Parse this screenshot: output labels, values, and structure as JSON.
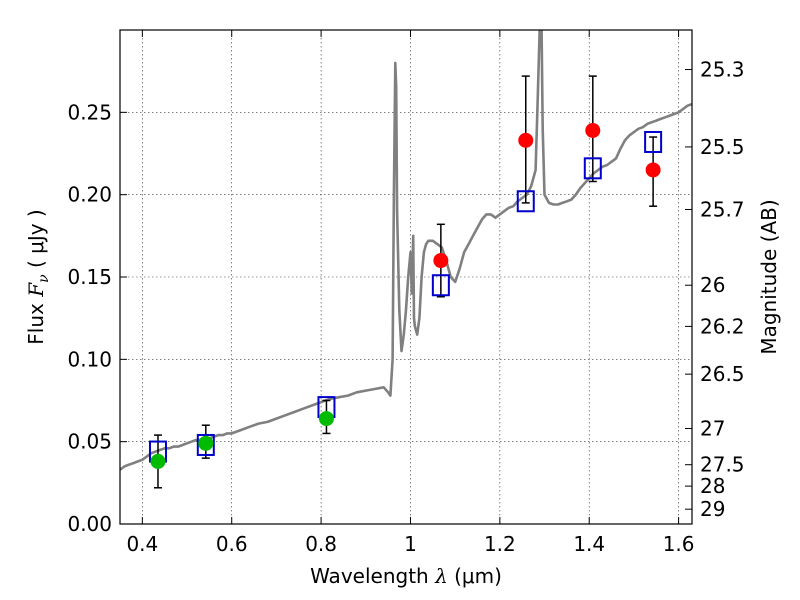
{
  "chart_data": {
    "type": "scatter",
    "xlabel_text": "Wavelength",
    "xlabel_symbol": "λ",
    "xlabel_unit": "(μm)",
    "ylabel_text": "Flux",
    "ylabel_symbol": "F",
    "ylabel_symbol_sub": "ν",
    "ylabel_unit": "( μJy )",
    "y2label": "Magnitude (AB)",
    "xlim": [
      0.35,
      1.63
    ],
    "ylim": [
      0.0,
      0.3
    ],
    "grid": true,
    "x_ticks": [
      0.4,
      0.6,
      0.8,
      1.0,
      1.2,
      1.4,
      1.6
    ],
    "x_tick_labels": [
      "0.4",
      "0.6",
      "0.8",
      "1",
      "1.2",
      "1.4",
      "1.6"
    ],
    "y_ticks": [
      0.0,
      0.05,
      0.1,
      0.15,
      0.2,
      0.25
    ],
    "y_tick_labels": [
      "0.00",
      "0.05",
      "0.10",
      "0.15",
      "0.20",
      "0.25"
    ],
    "y2_ticks": [
      {
        "label": "25.3",
        "flux": 0.276
      },
      {
        "label": "25.5",
        "flux": 0.229
      },
      {
        "label": "25.7",
        "flux": 0.191
      },
      {
        "label": "26",
        "flux": 0.145
      },
      {
        "label": "26.2",
        "flux": 0.12
      },
      {
        "label": "26.5",
        "flux": 0.091
      },
      {
        "label": "27",
        "flux": 0.058
      },
      {
        "label": "27.5",
        "flux": 0.036
      },
      {
        "label": "28",
        "flux": 0.023
      },
      {
        "label": "29",
        "flux": 0.009
      }
    ],
    "colors": {
      "model": "#808080",
      "green": "#00bb00",
      "red": "#ff0000",
      "square": "#0000cc",
      "errorbar": "#000000"
    },
    "model_spectrum": [
      [
        0.35,
        0.033
      ],
      [
        0.36,
        0.035
      ],
      [
        0.37,
        0.036
      ],
      [
        0.38,
        0.037
      ],
      [
        0.39,
        0.038
      ],
      [
        0.4,
        0.039
      ],
      [
        0.41,
        0.041
      ],
      [
        0.42,
        0.043
      ],
      [
        0.43,
        0.044
      ],
      [
        0.44,
        0.045
      ],
      [
        0.45,
        0.046
      ],
      [
        0.46,
        0.046
      ],
      [
        0.47,
        0.047
      ],
      [
        0.48,
        0.047
      ],
      [
        0.49,
        0.048
      ],
      [
        0.5,
        0.049
      ],
      [
        0.51,
        0.05
      ],
      [
        0.52,
        0.051
      ],
      [
        0.53,
        0.051
      ],
      [
        0.54,
        0.052
      ],
      [
        0.55,
        0.052
      ],
      [
        0.56,
        0.053
      ],
      [
        0.57,
        0.054
      ],
      [
        0.58,
        0.054
      ],
      [
        0.59,
        0.055
      ],
      [
        0.6,
        0.055
      ],
      [
        0.62,
        0.057
      ],
      [
        0.64,
        0.059
      ],
      [
        0.66,
        0.061
      ],
      [
        0.68,
        0.062
      ],
      [
        0.7,
        0.064
      ],
      [
        0.72,
        0.066
      ],
      [
        0.74,
        0.068
      ],
      [
        0.76,
        0.07
      ],
      [
        0.78,
        0.072
      ],
      [
        0.8,
        0.074
      ],
      [
        0.82,
        0.076
      ],
      [
        0.84,
        0.077
      ],
      [
        0.86,
        0.078
      ],
      [
        0.88,
        0.08
      ],
      [
        0.9,
        0.081
      ],
      [
        0.92,
        0.082
      ],
      [
        0.94,
        0.083
      ],
      [
        0.95,
        0.08
      ],
      [
        0.955,
        0.078
      ],
      [
        0.96,
        0.1
      ],
      [
        0.963,
        0.2
      ],
      [
        0.966,
        0.28
      ],
      [
        0.968,
        0.265
      ],
      [
        0.97,
        0.19
      ],
      [
        0.975,
        0.13
      ],
      [
        0.98,
        0.105
      ],
      [
        0.985,
        0.115
      ],
      [
        0.99,
        0.13
      ],
      [
        0.995,
        0.15
      ],
      [
        1.0,
        0.165
      ],
      [
        1.003,
        0.14
      ],
      [
        1.006,
        0.175
      ],
      [
        1.008,
        0.125
      ],
      [
        1.01,
        0.12
      ],
      [
        1.015,
        0.115
      ],
      [
        1.02,
        0.125
      ],
      [
        1.025,
        0.15
      ],
      [
        1.03,
        0.165
      ],
      [
        1.035,
        0.17
      ],
      [
        1.04,
        0.172
      ],
      [
        1.05,
        0.172
      ],
      [
        1.06,
        0.17
      ],
      [
        1.07,
        0.168
      ],
      [
        1.08,
        0.16
      ],
      [
        1.09,
        0.15
      ],
      [
        1.1,
        0.147
      ],
      [
        1.11,
        0.155
      ],
      [
        1.12,
        0.165
      ],
      [
        1.13,
        0.17
      ],
      [
        1.14,
        0.175
      ],
      [
        1.15,
        0.18
      ],
      [
        1.16,
        0.185
      ],
      [
        1.17,
        0.188
      ],
      [
        1.18,
        0.188
      ],
      [
        1.19,
        0.186
      ],
      [
        1.2,
        0.188
      ],
      [
        1.21,
        0.19
      ],
      [
        1.22,
        0.192
      ],
      [
        1.23,
        0.193
      ],
      [
        1.24,
        0.196
      ],
      [
        1.25,
        0.198
      ],
      [
        1.26,
        0.2
      ],
      [
        1.27,
        0.205
      ],
      [
        1.28,
        0.215
      ],
      [
        1.285,
        0.26
      ],
      [
        1.29,
        0.31
      ],
      [
        1.293,
        0.31
      ],
      [
        1.296,
        0.24
      ],
      [
        1.3,
        0.2
      ],
      [
        1.31,
        0.195
      ],
      [
        1.32,
        0.194
      ],
      [
        1.33,
        0.194
      ],
      [
        1.34,
        0.195
      ],
      [
        1.35,
        0.196
      ],
      [
        1.36,
        0.197
      ],
      [
        1.37,
        0.2
      ],
      [
        1.38,
        0.204
      ],
      [
        1.39,
        0.207
      ],
      [
        1.4,
        0.21
      ],
      [
        1.41,
        0.213
      ],
      [
        1.42,
        0.215
      ],
      [
        1.43,
        0.217
      ],
      [
        1.44,
        0.218
      ],
      [
        1.45,
        0.22
      ],
      [
        1.46,
        0.222
      ],
      [
        1.47,
        0.228
      ],
      [
        1.48,
        0.233
      ],
      [
        1.49,
        0.236
      ],
      [
        1.5,
        0.238
      ],
      [
        1.51,
        0.24
      ],
      [
        1.52,
        0.241
      ],
      [
        1.53,
        0.243
      ],
      [
        1.54,
        0.244
      ],
      [
        1.55,
        0.245
      ],
      [
        1.56,
        0.246
      ],
      [
        1.57,
        0.247
      ],
      [
        1.58,
        0.248
      ],
      [
        1.59,
        0.249
      ],
      [
        1.6,
        0.25
      ],
      [
        1.61,
        0.252
      ],
      [
        1.62,
        0.254
      ],
      [
        1.63,
        0.255
      ]
    ],
    "green_points": [
      {
        "x": 0.435,
        "y": 0.038,
        "yerr_low": 0.022,
        "yerr_high": 0.054
      },
      {
        "x": 0.542,
        "y": 0.049,
        "yerr_low": 0.04,
        "yerr_high": 0.06
      },
      {
        "x": 0.812,
        "y": 0.064,
        "yerr_low": 0.055,
        "yerr_high": 0.075
      }
    ],
    "red_points": [
      {
        "x": 1.068,
        "y": 0.16,
        "yerr_low": 0.138,
        "yerr_high": 0.182
      },
      {
        "x": 1.258,
        "y": 0.233,
        "yerr_low": 0.195,
        "yerr_high": 0.272
      },
      {
        "x": 1.408,
        "y": 0.239,
        "yerr_low": 0.208,
        "yerr_high": 0.272
      },
      {
        "x": 1.543,
        "y": 0.215,
        "yerr_low": 0.193,
        "yerr_high": 0.235
      }
    ],
    "square_points": [
      {
        "x": 0.435,
        "y": 0.044
      },
      {
        "x": 0.542,
        "y": 0.048
      },
      {
        "x": 0.812,
        "y": 0.071
      },
      {
        "x": 1.068,
        "y": 0.145
      },
      {
        "x": 1.258,
        "y": 0.196
      },
      {
        "x": 1.408,
        "y": 0.216
      },
      {
        "x": 1.543,
        "y": 0.232
      }
    ]
  }
}
